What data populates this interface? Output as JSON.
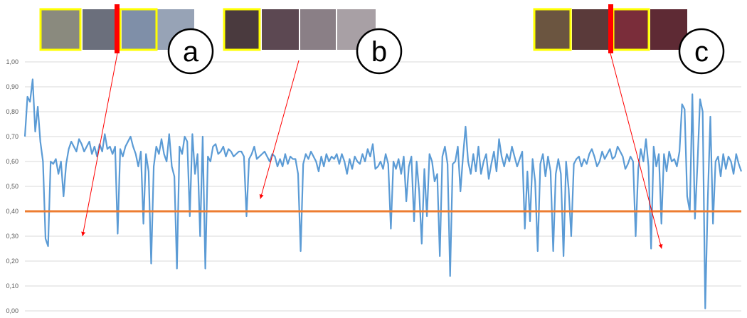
{
  "chart_data": {
    "type": "line",
    "ylim": [
      0,
      1
    ],
    "y_ticks": [
      "0,00",
      "0,10",
      "0,20",
      "0,30",
      "0,40",
      "0,50",
      "0,60",
      "0,70",
      "0,80",
      "0,90",
      "1,00"
    ],
    "grid": true,
    "series": [
      {
        "color": "#5b9bd5",
        "values": [
          0.7,
          0.86,
          0.84,
          0.93,
          0.72,
          0.82,
          0.68,
          0.6,
          0.29,
          0.26,
          0.6,
          0.59,
          0.61,
          0.55,
          0.6,
          0.46,
          0.59,
          0.65,
          0.68,
          0.66,
          0.64,
          0.69,
          0.67,
          0.64,
          0.66,
          0.68,
          0.63,
          0.66,
          0.62,
          0.67,
          0.64,
          0.71,
          0.65,
          0.66,
          0.63,
          0.66,
          0.31,
          0.65,
          0.62,
          0.66,
          0.68,
          0.7,
          0.66,
          0.63,
          0.58,
          0.64,
          0.35,
          0.63,
          0.56,
          0.19,
          0.58,
          0.66,
          0.63,
          0.69,
          0.63,
          0.6,
          0.71,
          0.58,
          0.54,
          0.17,
          0.66,
          0.63,
          0.7,
          0.68,
          0.38,
          0.71,
          0.55,
          0.63,
          0.3,
          0.7,
          0.17,
          0.62,
          0.6,
          0.66,
          0.67,
          0.63,
          0.64,
          0.66,
          0.62,
          0.65,
          0.64,
          0.62,
          0.63,
          0.64,
          0.64,
          0.62,
          0.38,
          0.61,
          0.63,
          0.66,
          0.61,
          0.62,
          0.63,
          0.64,
          0.62,
          0.6,
          0.63,
          0.62,
          0.58,
          0.61,
          0.58,
          0.63,
          0.59,
          0.62,
          0.61,
          0.61,
          0.55,
          0.24,
          0.59,
          0.63,
          0.61,
          0.64,
          0.62,
          0.6,
          0.56,
          0.62,
          0.58,
          0.63,
          0.6,
          0.62,
          0.61,
          0.63,
          0.59,
          0.63,
          0.6,
          0.55,
          0.61,
          0.57,
          0.62,
          0.6,
          0.59,
          0.63,
          0.6,
          0.65,
          0.62,
          0.67,
          0.57,
          0.58,
          0.6,
          0.57,
          0.63,
          0.59,
          0.33,
          0.6,
          0.57,
          0.61,
          0.55,
          0.62,
          0.44,
          0.58,
          0.62,
          0.36,
          0.6,
          0.48,
          0.27,
          0.57,
          0.38,
          0.63,
          0.6,
          0.52,
          0.55,
          0.22,
          0.62,
          0.66,
          0.59,
          0.14,
          0.59,
          0.6,
          0.66,
          0.48,
          0.62,
          0.74,
          0.6,
          0.55,
          0.63,
          0.56,
          0.66,
          0.55,
          0.6,
          0.63,
          0.53,
          0.59,
          0.64,
          0.56,
          0.69,
          0.62,
          0.58,
          0.63,
          0.6,
          0.66,
          0.62,
          0.58,
          0.61,
          0.64,
          0.33,
          0.56,
          0.36,
          0.61,
          0.52,
          0.24,
          0.59,
          0.63,
          0.54,
          0.62,
          0.56,
          0.24,
          0.55,
          0.61,
          0.55,
          0.22,
          0.6,
          0.49,
          0.3,
          0.59,
          0.61,
          0.62,
          0.58,
          0.61,
          0.59,
          0.63,
          0.65,
          0.62,
          0.58,
          0.6,
          0.64,
          0.61,
          0.63,
          0.65,
          0.61,
          0.62,
          0.66,
          0.64,
          0.62,
          0.57,
          0.59,
          0.62,
          0.6,
          0.3,
          0.57,
          0.65,
          0.6,
          0.69,
          0.58,
          0.25,
          0.66,
          0.58,
          0.63,
          0.35,
          0.63,
          0.56,
          0.64,
          0.6,
          0.61,
          0.58,
          0.64,
          0.83,
          0.81,
          0.46,
          0.4,
          0.87,
          0.37,
          0.59,
          0.85,
          0.8,
          0.01,
          0.45,
          0.78,
          0.35,
          0.6,
          0.62,
          0.54,
          0.63,
          0.57,
          0.62,
          0.6,
          0.55,
          0.63,
          0.59,
          0.56
        ]
      },
      {
        "color": "#ed7d31",
        "values": [
          0.4,
          0.4
        ]
      }
    ]
  },
  "callouts": [
    {
      "label": "a",
      "arrow_value": 0.3
    },
    {
      "label": "b",
      "arrow_value": 0.45
    },
    {
      "label": "c",
      "arrow_value": 0.25
    }
  ],
  "colors": {
    "line": "#5b9bd5",
    "threshold": "#ed7d31",
    "grid": "#d9d9d9",
    "highlight": "#ffff00",
    "marker": "#ff0000"
  }
}
